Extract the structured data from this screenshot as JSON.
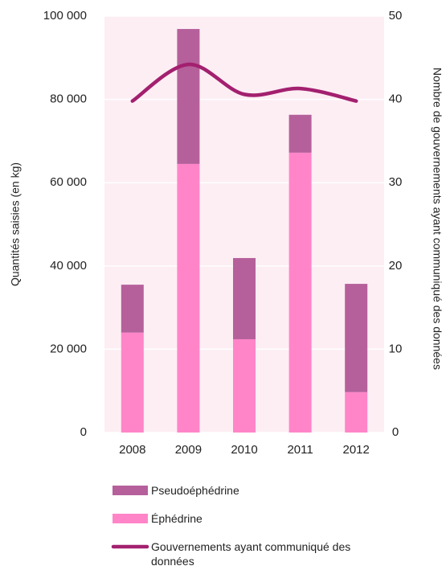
{
  "chart_data": {
    "type": "stacked-bar-line",
    "ylabel": "Quantités saisies (en kg)",
    "y2label": "Nombre de gouvernements ayant  communiqué des données",
    "categories": [
      "2008",
      "2009",
      "2010",
      "2011",
      "2012"
    ],
    "series": [
      {
        "name": "Pseudoéphédrine",
        "color": "#b5609b",
        "type": "bar",
        "values": [
          11500,
          32400,
          19500,
          9100,
          26000
        ]
      },
      {
        "name": "Éphédrine",
        "color": "#ff85c8",
        "type": "bar",
        "values": [
          24000,
          64500,
          22400,
          67200,
          9700
        ]
      },
      {
        "name": "Gouvernements ayant communiqué des données",
        "color": "#a3206f",
        "type": "line",
        "axis": "y2",
        "values": [
          39.8,
          44.2,
          40.6,
          41.3,
          39.8
        ]
      }
    ],
    "ylim": [
      0,
      100000
    ],
    "yticks": [
      0,
      {
        "value": 20000,
        "label": "20 000"
      },
      {
        "value": 40000,
        "label": "40 000"
      },
      {
        "value": 60000,
        "label": "60 000"
      },
      {
        "value": 80000,
        "label": "80 000"
      },
      {
        "value": 100000,
        "label": "100 000"
      }
    ],
    "y2lim": [
      0,
      50
    ],
    "y2ticks": [
      0,
      10,
      20,
      30,
      40,
      50
    ],
    "grid": true,
    "background": "#fdeef4",
    "legend": "bottom"
  }
}
